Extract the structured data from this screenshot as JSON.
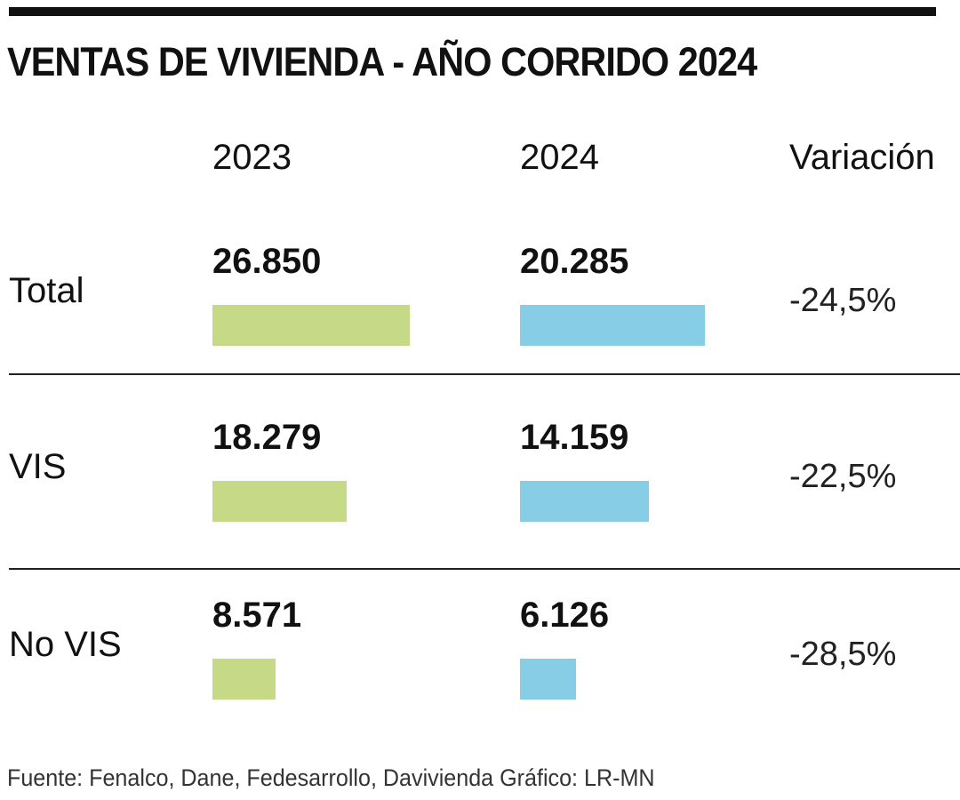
{
  "chart_data": {
    "type": "bar",
    "title": "VENTAS DE VIVIENDA - AÑO CORRIDO 2024",
    "columns": [
      "2023",
      "2024",
      "Variación"
    ],
    "categories": [
      "Total",
      "VIS",
      "No VIS"
    ],
    "series": [
      {
        "name": "2023",
        "values": [
          26850,
          18279,
          8571
        ],
        "labels": [
          "26.850",
          "18.279",
          "8.571"
        ],
        "color": "#c5d986"
      },
      {
        "name": "2024",
        "values": [
          20285,
          14159,
          6126
        ],
        "labels": [
          "20.285",
          "14.159",
          "6.126"
        ],
        "color": "#87cde5"
      }
    ],
    "variation": [
      "-24,5%",
      "-22,5%",
      "-28,5%"
    ],
    "source": "Fuente: Fenalco, Dane, Fedesarrollo, Davivienda   Gráfico: LR-MN"
  }
}
